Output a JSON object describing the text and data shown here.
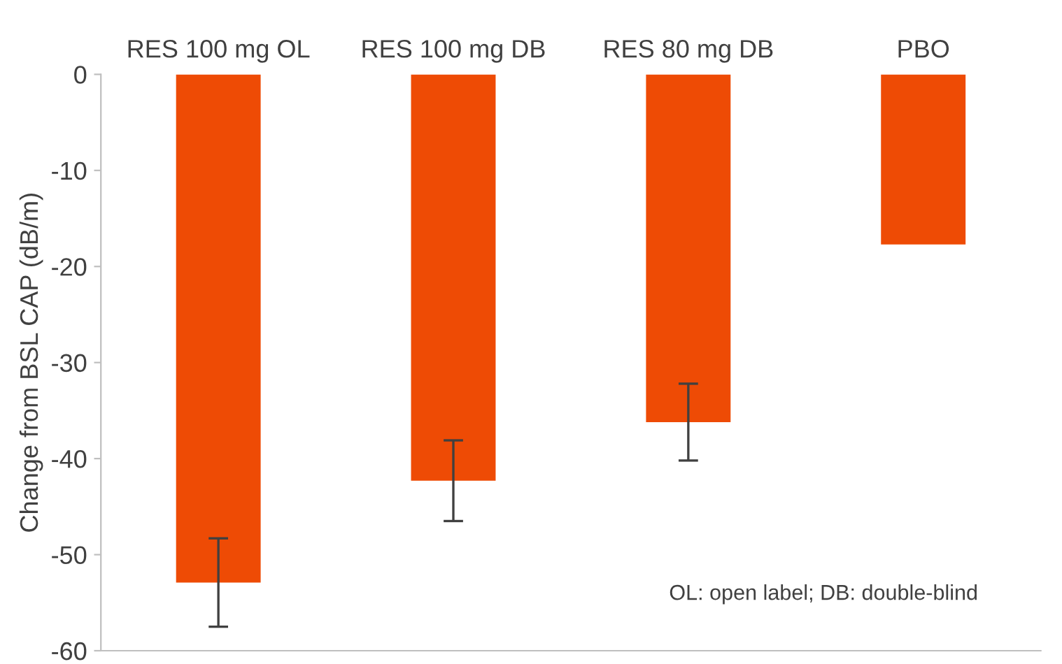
{
  "chart_data": {
    "type": "bar",
    "categories": [
      "RES 100 mg OL",
      "RES 100 mg DB",
      "RES 80 mg DB",
      "PBO"
    ],
    "values": [
      -52.9,
      -42.3,
      -36.2,
      -17.7
    ],
    "errors": [
      4.6,
      4.2,
      4.0,
      null
    ],
    "color": "#ee4b05",
    "ylabel": "Change from BSL CAP (dB/m)",
    "ylim": [
      -60,
      0
    ],
    "yticks": [
      {
        "value": -60,
        "label": "-60"
      },
      {
        "value": -50,
        "label": "-50"
      },
      {
        "value": -40,
        "label": "-40"
      },
      {
        "value": -30,
        "label": "-30"
      },
      {
        "value": -20,
        "label": "-20"
      },
      {
        "value": -10,
        "label": "-10"
      },
      0
    ],
    "grid": false,
    "annotations": [
      "OL: open label; DB: double-blind"
    ]
  }
}
